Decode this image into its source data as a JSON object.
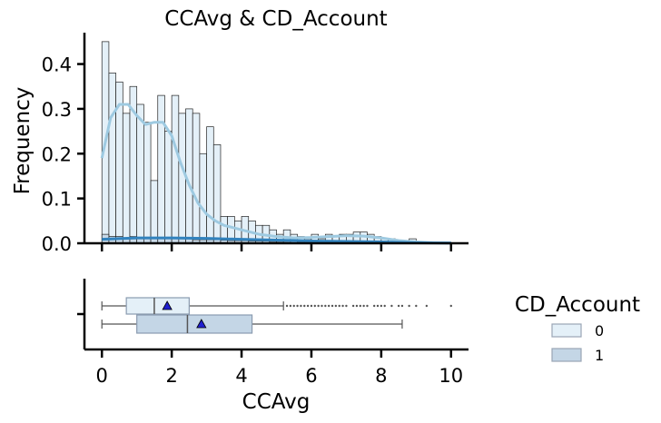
{
  "chart_data": [
    {
      "type": "histogram",
      "title": "CCAvg & CD_Account",
      "xlabel": "",
      "ylabel": "Frequency",
      "xlim": [
        -0.5,
        10.5
      ],
      "ylim": [
        0,
        0.47
      ],
      "x_ticks": [
        0,
        2,
        4,
        6,
        8,
        10
      ],
      "y_ticks": [
        0.0,
        0.1,
        0.2,
        0.3,
        0.4
      ],
      "y_tick_labels": [
        "0.0",
        "0.1",
        "0.2",
        "0.3",
        "0.4"
      ],
      "bin_width": 0.2,
      "bin_start": 0,
      "series": [
        {
          "name": "0",
          "color": "#e4f0f8",
          "kde_color": "#9ecae1",
          "values": [
            0.45,
            0.38,
            0.36,
            0.29,
            0.35,
            0.31,
            0.27,
            0.14,
            0.33,
            0.25,
            0.33,
            0.29,
            0.3,
            0.29,
            0.2,
            0.26,
            0.22,
            0.06,
            0.06,
            0.05,
            0.06,
            0.05,
            0.04,
            0.04,
            0.03,
            0.02,
            0.03,
            0.02,
            0.015,
            0.01,
            0.02,
            0.01,
            0.02,
            0.015,
            0.02,
            0.02,
            0.025,
            0.025,
            0.02,
            0.015,
            0.01,
            0.01,
            0.005,
            0.005,
            0.01,
            0.002,
            0.001,
            0.001,
            0.001,
            0.001
          ],
          "kde_x": [
            0,
            0.25,
            0.5,
            0.75,
            1.0,
            1.25,
            1.5,
            1.75,
            2.0,
            2.25,
            2.5,
            2.75,
            3.0,
            3.25,
            3.5,
            3.75,
            4.0,
            4.5,
            5.0,
            5.5,
            6.0,
            6.5,
            7.0,
            7.5,
            8.0,
            8.5,
            9.0,
            9.5,
            10.0
          ],
          "kde_y": [
            0.19,
            0.28,
            0.31,
            0.31,
            0.285,
            0.265,
            0.27,
            0.27,
            0.24,
            0.18,
            0.13,
            0.09,
            0.065,
            0.05,
            0.04,
            0.035,
            0.03,
            0.02,
            0.015,
            0.012,
            0.013,
            0.015,
            0.017,
            0.016,
            0.012,
            0.006,
            0.003,
            0.001,
            0.0005
          ]
        },
        {
          "name": "1",
          "color": "#c4d6e6",
          "kde_color": "#3182bd",
          "values": [
            0.02,
            0.015,
            0.015,
            0.01,
            0.015,
            0.01,
            0.01,
            0.01,
            0.012,
            0.01,
            0.01,
            0.01,
            0.01,
            0.008,
            0.008,
            0.008,
            0.008,
            0.007,
            0.006,
            0.006,
            0.006,
            0.005,
            0.005,
            0.005,
            0.004,
            0.004,
            0.004,
            0.004,
            0.003,
            0.003,
            0.003,
            0.003,
            0.003,
            0.003,
            0.003,
            0.003,
            0.003,
            0.003,
            0.003,
            0.002,
            0.002,
            0.002,
            0.002,
            0.002,
            0.001,
            0.001,
            0.001,
            0.001,
            0.001,
            0.001
          ],
          "kde_x": [
            0,
            1,
            2,
            3,
            4,
            5,
            6,
            7,
            8,
            9,
            10
          ],
          "kde_y": [
            0.009,
            0.012,
            0.012,
            0.011,
            0.009,
            0.007,
            0.005,
            0.004,
            0.003,
            0.001,
            0.0005
          ]
        }
      ]
    },
    {
      "type": "boxplot",
      "xlabel": "CCAvg",
      "xlim": [
        -0.5,
        10.5
      ],
      "x_ticks": [
        0,
        2,
        4,
        6,
        8,
        10
      ],
      "legend": {
        "title": "CD_Account",
        "placement": "right",
        "entries": [
          {
            "label": "0",
            "color": "#e4f0f8"
          },
          {
            "label": "1",
            "color": "#c4d6e6"
          }
        ]
      },
      "series": [
        {
          "name": "0",
          "color": "#e4f0f8",
          "min": 0.0,
          "q1": 0.7,
          "median": 1.5,
          "q3": 2.5,
          "max": 5.2,
          "mean": 1.87,
          "outliers": [
            5.3,
            5.4,
            5.5,
            5.6,
            5.7,
            5.8,
            5.9,
            6.0,
            6.1,
            6.2,
            6.3,
            6.4,
            6.5,
            6.6,
            6.7,
            6.8,
            6.9,
            7.0,
            7.2,
            7.3,
            7.4,
            7.5,
            7.6,
            7.8,
            7.9,
            8.0,
            8.1,
            8.3,
            8.5,
            8.6,
            8.8,
            9.0,
            9.3,
            10.0
          ]
        },
        {
          "name": "1",
          "color": "#c4d6e6",
          "min": 0.0,
          "q1": 1.0,
          "median": 2.45,
          "q3": 4.3,
          "max": 8.6,
          "mean": 2.85,
          "outliers": []
        }
      ]
    }
  ]
}
